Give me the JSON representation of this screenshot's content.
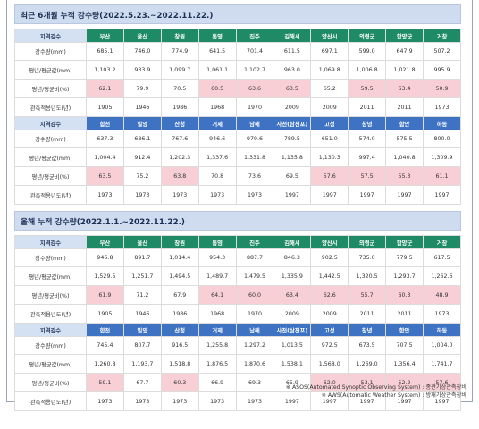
{
  "section1": {
    "title": "최근 6개월 누적 강수량(2022.5.23.~2022.11.22.)",
    "header_label": "지역강수",
    "row_labels": [
      "강수량(mm)",
      "평년/평균값(mm)",
      "평년/평균비(%)",
      "관측적용년도(년)"
    ],
    "block1": {
      "stations": [
        "부산",
        "울산",
        "창원",
        "통영",
        "진주",
        "김해시",
        "양산시",
        "의령군",
        "함양군",
        "거창"
      ],
      "rain": [
        "685.1",
        "746.0",
        "774.9",
        "641.5",
        "701.4",
        "611.5",
        "697.1",
        "599.0",
        "647.9",
        "507.2"
      ],
      "normal": [
        "1,103.2",
        "933.9",
        "1,099.7",
        "1,061.1",
        "1,102.7",
        "963.0",
        "1,069.8",
        "1,006.8",
        "1,021.8",
        "995.9"
      ],
      "ratio": [
        "62.1",
        "79.9",
        "70.5",
        "60.5",
        "63.6",
        "63.5",
        "65.2",
        "59.5",
        "63.4",
        "50.9"
      ],
      "year": [
        "1905",
        "1946",
        "1986",
        "1968",
        "1970",
        "2009",
        "2009",
        "2011",
        "2011",
        "1973"
      ]
    },
    "block2": {
      "stations": [
        "합천",
        "밀양",
        "산청",
        "거제",
        "남해",
        "사천(삼천포)",
        "고성",
        "창녕",
        "함안",
        "하동"
      ],
      "rain": [
        "637.3",
        "686.1",
        "767.6",
        "946.6",
        "979.6",
        "789.5",
        "651.0",
        "574.0",
        "575.5",
        "800.0"
      ],
      "normal": [
        "1,004.4",
        "912.4",
        "1,202.3",
        "1,337.6",
        "1,331.8",
        "1,135.8",
        "1,130.3",
        "997.4",
        "1,040.8",
        "1,309.9"
      ],
      "ratio": [
        "63.5",
        "75.2",
        "63.8",
        "70.8",
        "73.6",
        "69.5",
        "57.6",
        "57.5",
        "55.3",
        "61.1"
      ],
      "year": [
        "1973",
        "1973",
        "1973",
        "1973",
        "1973",
        "1997",
        "1997",
        "1997",
        "1997",
        "1997"
      ]
    }
  },
  "section2": {
    "title": "올해 누적 강수량(2022.1.1.~2022.11.22.)",
    "header_label": "지역강수",
    "row_labels": [
      "강수량(mm)",
      "평년/평균값(mm)",
      "평년/평균비(%)",
      "관측적용년도(년)"
    ],
    "block1": {
      "stations": [
        "부산",
        "울산",
        "창원",
        "통영",
        "진주",
        "김해시",
        "양산시",
        "의령군",
        "함양군",
        "거창"
      ],
      "rain": [
        "946.8",
        "891.7",
        "1,014.4",
        "954.3",
        "887.7",
        "846.3",
        "902.5",
        "735.0",
        "779.5",
        "617.5"
      ],
      "normal": [
        "1,529.5",
        "1,251.7",
        "1,494.5",
        "1,489.7",
        "1,479.5",
        "1,335.9",
        "1,442.5",
        "1,320.5",
        "1,293.7",
        "1,262.6"
      ],
      "ratio": [
        "61.9",
        "71.2",
        "67.9",
        "64.1",
        "60.0",
        "63.4",
        "62.6",
        "55.7",
        "60.3",
        "48.9"
      ],
      "year": [
        "1905",
        "1946",
        "1986",
        "1968",
        "1970",
        "2009",
        "2009",
        "2011",
        "2011",
        "1973"
      ]
    },
    "block2": {
      "stations": [
        "합천",
        "밀양",
        "산청",
        "거제",
        "남해",
        "사천(삼천포)",
        "고성",
        "창녕",
        "함안",
        "하동"
      ],
      "rain": [
        "745.4",
        "807.7",
        "916.5",
        "1,255.8",
        "1,297.2",
        "1,013.5",
        "972.5",
        "673.5",
        "707.5",
        "1,004.0"
      ],
      "normal": [
        "1,260.8",
        "1,193.7",
        "1,518.8",
        "1,876.5",
        "1,870.6",
        "1,538.1",
        "1,568.0",
        "1,269.0",
        "1,356.4",
        "1,741.7"
      ],
      "ratio": [
        "59.1",
        "67.7",
        "60.3",
        "66.9",
        "69.3",
        "65.9",
        "62.0",
        "53.1",
        "52.2",
        "57.6"
      ],
      "year": [
        "1973",
        "1973",
        "1973",
        "1973",
        "1973",
        "1997",
        "1997",
        "1997",
        "1997",
        "1997"
      ]
    }
  },
  "notes": [
    "※ ASOS(Automated Synoptic Observing System) : 종관기상관측장비",
    "※ AWS(Automatic Weather System) : 방재기상관측장비"
  ],
  "colors": {
    "header_green": "#1e8a66",
    "header_blue": "#3e73c4",
    "highlight_pink": "#f8cfd5",
    "title_band": "#cfdcef"
  }
}
